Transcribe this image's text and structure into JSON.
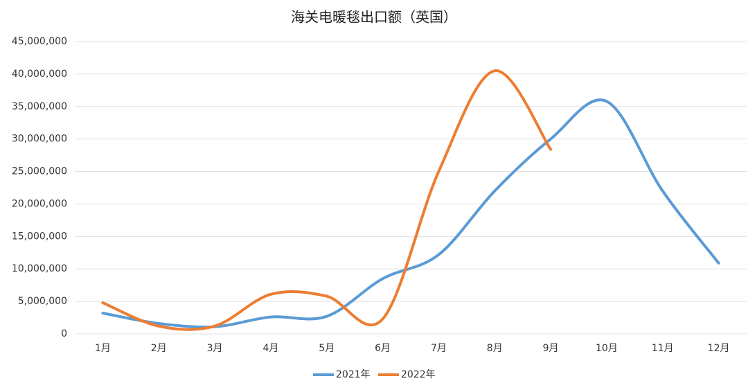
{
  "chart_data": {
    "type": "line",
    "title": "海关电暖毯出口额（英国）",
    "categories": [
      "1月",
      "2月",
      "3月",
      "4月",
      "5月",
      "6月",
      "7月",
      "8月",
      "9月",
      "10月",
      "11月",
      "12月"
    ],
    "series": [
      {
        "name": "2021年",
        "color": "#5b9bd5",
        "values": [
          3200000,
          1600000,
          1100000,
          2600000,
          2700000,
          8500000,
          12200000,
          22000000,
          30000000,
          35800000,
          22000000,
          10900000
        ]
      },
      {
        "name": "2022年",
        "color": "#ed7d31",
        "values": [
          4800000,
          1200000,
          1200000,
          6100000,
          5800000,
          2300000,
          25000000,
          40500000,
          28400000,
          null,
          null,
          null
        ]
      }
    ],
    "ylim": [
      0,
      45000000
    ],
    "yticks": [
      0,
      {
        "value": 5000000,
        "label": "5,000,000"
      },
      {
        "value": 10000000,
        "label": "10,000,000"
      },
      {
        "value": 15000000,
        "label": "15,000,000"
      },
      {
        "value": 20000000,
        "label": "20,000,000"
      },
      {
        "value": 25000000,
        "label": "25,000,000"
      },
      {
        "value": 30000000,
        "label": "30,000,000"
      },
      {
        "value": 35000000,
        "label": "35,000,000"
      },
      {
        "value": 40000000,
        "label": "40,000,000"
      },
      {
        "value": 45000000,
        "label": "45,000,000"
      }
    ],
    "grid": true,
    "smooth": true,
    "legend": "bottom"
  }
}
